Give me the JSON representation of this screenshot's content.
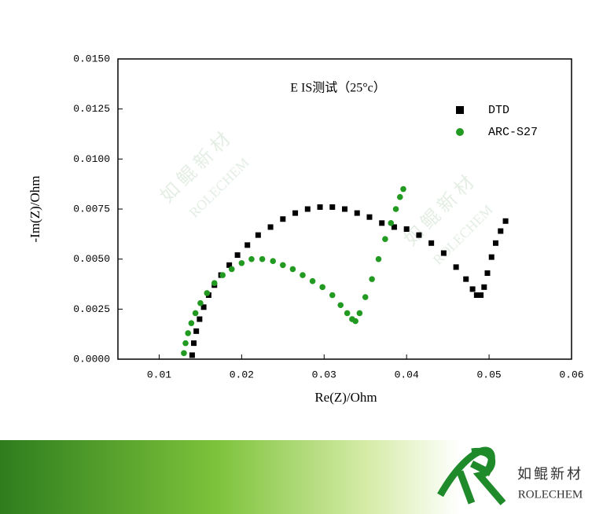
{
  "chart_data": {
    "type": "scatter",
    "title": "E IS测试（25°c）",
    "xlabel": "Re(Z)/Ohm",
    "ylabel": "-Im(Z)/Ohm",
    "xlim": [
      0.005,
      0.06
    ],
    "xticks": [
      0.01,
      0.02,
      0.03,
      0.04,
      0.05,
      0.06
    ],
    "ylim": [
      0,
      0.015
    ],
    "yticks": [
      {
        "value": 0,
        "label": "0.0000"
      },
      {
        "value": 0.0025,
        "label": "0.0025"
      },
      {
        "value": 0.005,
        "label": "0.0050"
      },
      {
        "value": 0.0075,
        "label": "0.0075"
      },
      {
        "value": 0.01,
        "label": "0.0100"
      },
      {
        "value": 0.0125,
        "label": "0.0125"
      },
      {
        "value": 0.015,
        "label": "0.0150"
      }
    ],
    "legend": "upper right",
    "series": [
      {
        "name": "DTD",
        "color": "#000000",
        "marker": "square",
        "x": [
          0.014,
          0.0142,
          0.0145,
          0.0149,
          0.0154,
          0.016,
          0.0167,
          0.0175,
          0.0185,
          0.0195,
          0.0207,
          0.022,
          0.0235,
          0.025,
          0.0265,
          0.028,
          0.0295,
          0.031,
          0.0325,
          0.034,
          0.0355,
          0.037,
          0.0385,
          0.04,
          0.0415,
          0.043,
          0.0445,
          0.046,
          0.0472,
          0.048,
          0.0485,
          0.049,
          0.0494,
          0.0498,
          0.0503,
          0.0508,
          0.0514,
          0.052
        ],
        "values": [
          0.0002,
          0.0008,
          0.0014,
          0.002,
          0.0026,
          0.0032,
          0.0037,
          0.0042,
          0.0047,
          0.0052,
          0.0057,
          0.0062,
          0.0066,
          0.007,
          0.0073,
          0.0075,
          0.0076,
          0.0076,
          0.0075,
          0.0073,
          0.0071,
          0.0068,
          0.0066,
          0.0065,
          0.0062,
          0.0058,
          0.0053,
          0.0046,
          0.004,
          0.0035,
          0.0032,
          0.0032,
          0.0036,
          0.0043,
          0.0051,
          0.0058,
          0.0064,
          0.0069
        ]
      },
      {
        "name": "ARC-S27",
        "color": "#229a22",
        "marker": "circle",
        "x": [
          0.013,
          0.0132,
          0.0135,
          0.0139,
          0.0144,
          0.015,
          0.0158,
          0.0167,
          0.0177,
          0.0188,
          0.02,
          0.0212,
          0.0225,
          0.0238,
          0.025,
          0.0262,
          0.0274,
          0.0286,
          0.0298,
          0.031,
          0.032,
          0.0328,
          0.0334,
          0.0338,
          0.0343,
          0.035,
          0.0358,
          0.0366,
          0.0374,
          0.0381,
          0.0387,
          0.0392,
          0.0396
        ],
        "values": [
          0.0003,
          0.0008,
          0.0013,
          0.0018,
          0.0023,
          0.0028,
          0.0033,
          0.0038,
          0.0042,
          0.0045,
          0.0048,
          0.005,
          0.005,
          0.0049,
          0.0047,
          0.0045,
          0.0042,
          0.0039,
          0.0036,
          0.0032,
          0.0027,
          0.0023,
          0.002,
          0.0019,
          0.0023,
          0.0031,
          0.004,
          0.005,
          0.006,
          0.0068,
          0.0075,
          0.0081,
          0.0085
        ]
      }
    ]
  },
  "watermark": {
    "text": "如 鲲 新 材",
    "subtext": "ROLECHEM"
  },
  "logo": {
    "text": "如鲲新材",
    "subtext": "ROLECHEM"
  }
}
